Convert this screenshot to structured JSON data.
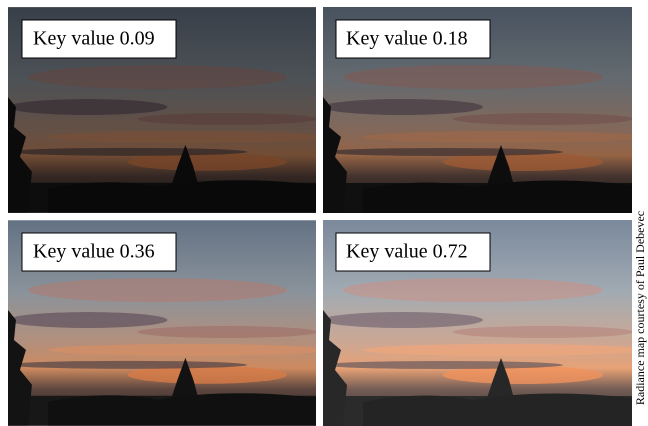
{
  "panels": [
    {
      "label": "Key value 0.09"
    },
    {
      "label": "Key value 0.18"
    },
    {
      "label": "Key value 0.36"
    },
    {
      "label": "Key value 0.72"
    }
  ],
  "credit": "Radiance map courtesy of Paul Debevec"
}
